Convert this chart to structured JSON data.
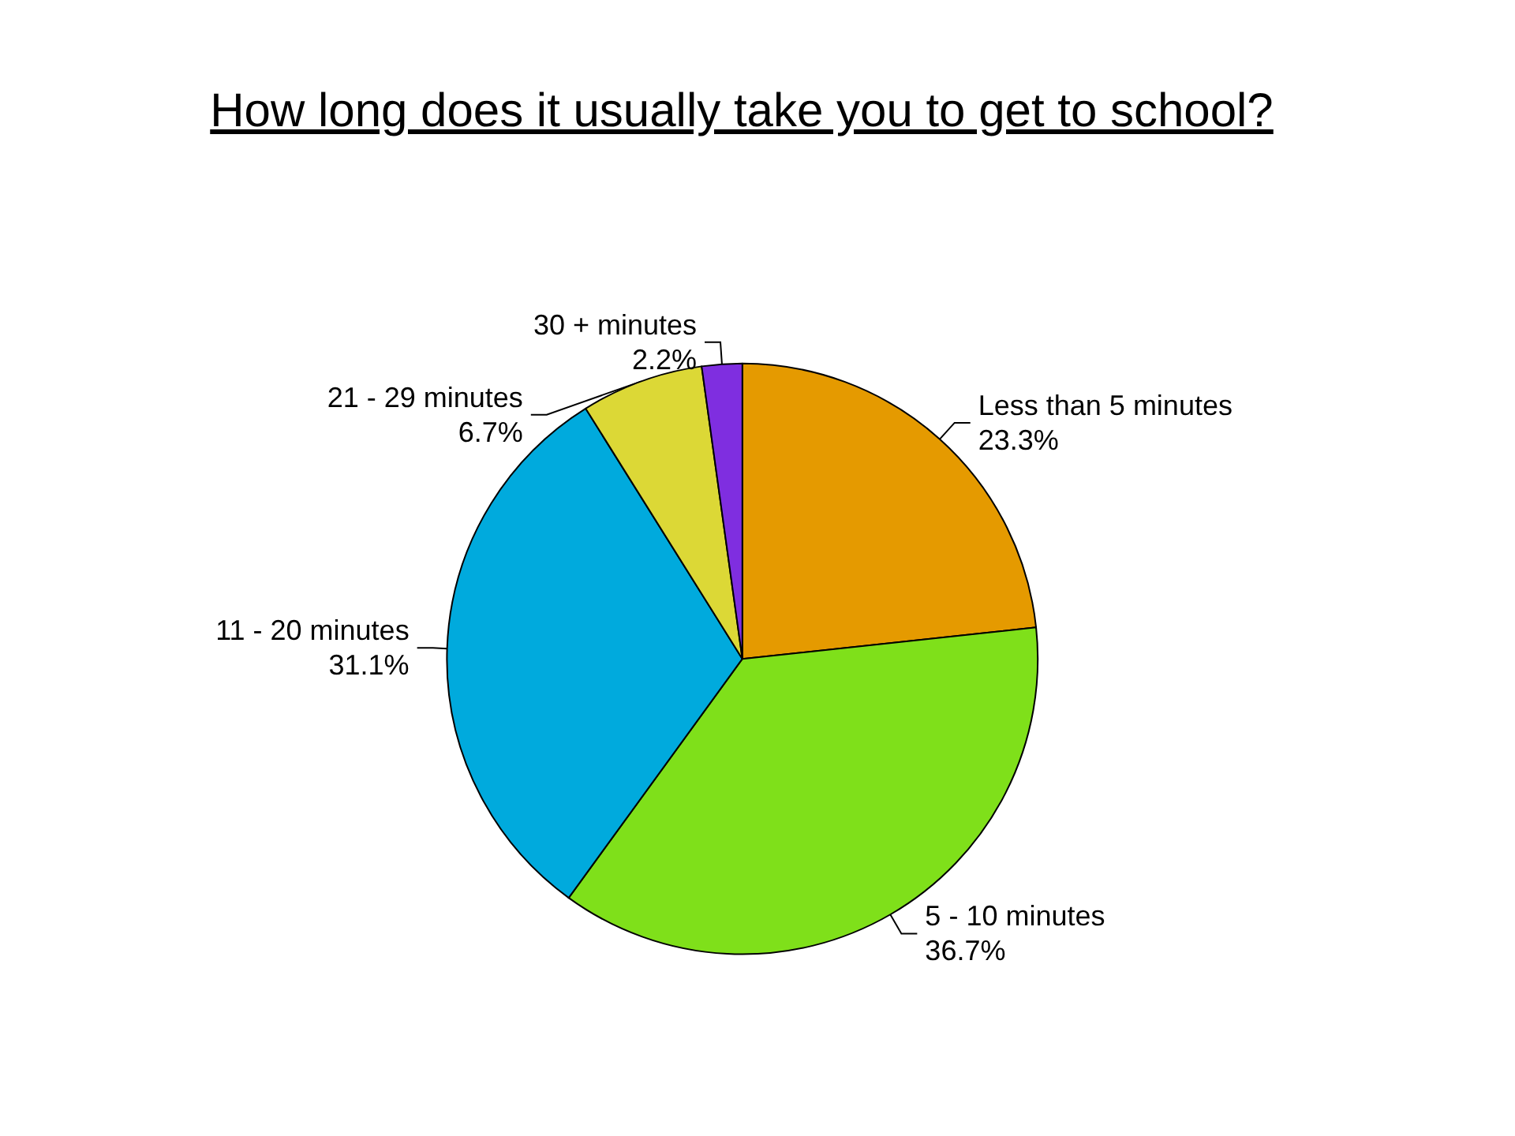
{
  "chart_data": {
    "type": "pie",
    "title": "How long does it usually take you to get to school?",
    "categories": [
      "Less than 5 minutes",
      "5 - 10 minutes",
      "11 - 20 minutes",
      "21 - 29 minutes",
      "30 + minutes"
    ],
    "values": [
      23.3,
      36.7,
      31.1,
      6.7,
      2.2
    ],
    "value_labels": [
      "23.3%",
      "36.7%",
      "31.1%",
      "6.7%",
      "2.2%"
    ],
    "colors": [
      "#e59a00",
      "#7fe01a",
      "#00aadd",
      "#dcd836",
      "#7f2ee0"
    ],
    "legend": false
  }
}
